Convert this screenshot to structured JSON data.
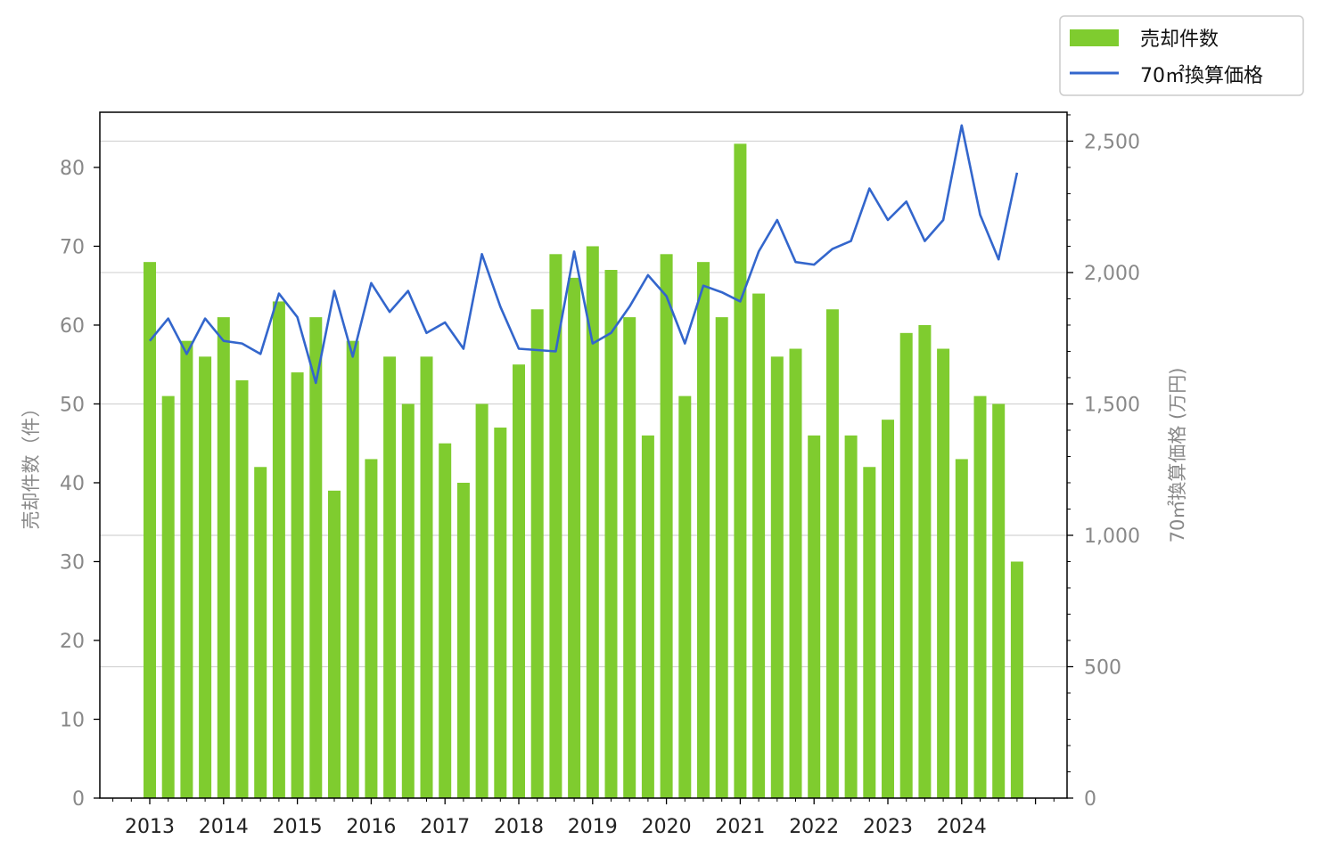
{
  "chart_data": {
    "type": "bar+line",
    "title": "",
    "xlabel": "",
    "ylabel_left": "売却件数（件）",
    "ylabel_right": "70㎡換算価格 (万円)",
    "ylim_left": [
      0,
      87
    ],
    "ylim_right": [
      0,
      2610
    ],
    "yticks_left": [
      "0",
      "10",
      "20",
      "30",
      "40",
      "50",
      "60",
      "70",
      "80"
    ],
    "yticks_right": [
      "0",
      "500",
      "1,000",
      "1,500",
      "2,000",
      "2,500"
    ],
    "xticks": [
      "2013",
      "2014",
      "2015",
      "2016",
      "2017",
      "2018",
      "2019",
      "2020",
      "2021",
      "2022",
      "2023",
      "2024"
    ],
    "grid": "horizontal (right axis)",
    "legend_position": "top-right outside",
    "colors": {
      "bar": "#7fcc2f",
      "line": "#3366cc",
      "grid": "#d3d3d3"
    },
    "series": [
      {
        "name": "売却件数",
        "type": "bar",
        "axis": "left",
        "values": [
          68,
          51,
          58,
          56,
          61,
          53,
          42,
          63,
          54,
          61,
          39,
          58,
          43,
          56,
          50,
          56,
          45,
          40,
          50,
          47,
          55,
          62,
          69,
          66,
          70,
          67,
          61,
          46,
          69,
          51,
          68,
          61,
          83,
          64,
          56,
          57,
          46,
          62,
          46,
          42,
          48,
          59,
          60,
          57,
          43,
          51,
          50,
          30
        ]
      },
      {
        "name": "70㎡換算価格",
        "type": "line",
        "axis": "right",
        "values": [
          1740,
          1825,
          1690,
          1825,
          1740,
          1730,
          1690,
          1920,
          1830,
          1580,
          1930,
          1680,
          1960,
          1850,
          1930,
          1770,
          1810,
          1710,
          2070,
          1870,
          1710,
          1705,
          1700,
          2080,
          1730,
          1770,
          1870,
          1990,
          1910,
          1730,
          1950,
          1925,
          1890,
          2080,
          2200,
          2040,
          2030,
          2090,
          2120,
          2320,
          2200,
          2270,
          2120,
          2200,
          2560,
          2220,
          2050,
          2380
        ]
      }
    ]
  }
}
